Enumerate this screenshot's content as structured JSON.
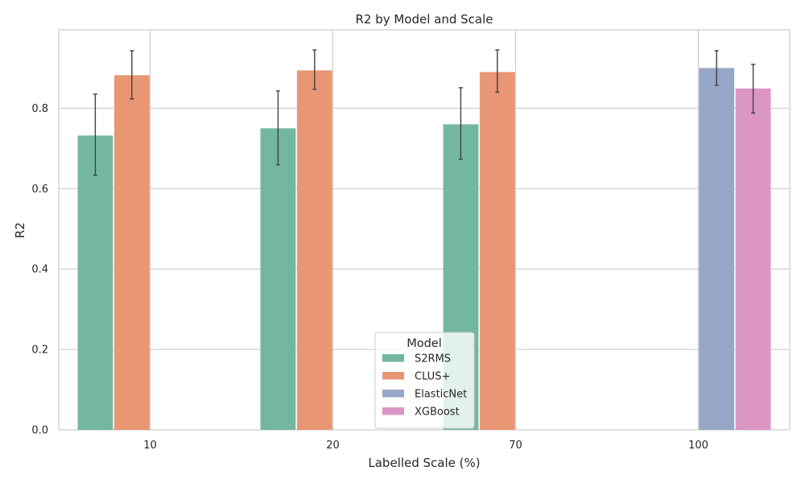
{
  "chart_data": {
    "type": "bar",
    "title": "R2 by Model and Scale",
    "xlabel": "Labelled Scale (%)",
    "ylabel": "R2",
    "categories": [
      "10",
      "20",
      "70",
      "100"
    ],
    "ylim": [
      0,
      0.995
    ],
    "yticks": [
      0.0,
      0.2,
      0.4,
      0.6,
      0.8
    ],
    "ytick_labels": [
      "0.0",
      "0.2",
      "0.4",
      "0.6",
      "0.8"
    ],
    "grid": true,
    "legend": {
      "title": "Model",
      "placement": "bottom-center"
    },
    "series": [
      {
        "name": "S2RMS",
        "color": "#73b7a0",
        "values": [
          0.732,
          0.75,
          0.76,
          null
        ],
        "err_low": [
          0.633,
          0.659,
          0.673,
          null
        ],
        "err_high": [
          0.835,
          0.843,
          0.851,
          null
        ]
      },
      {
        "name": "CLUS+",
        "color": "#e99674",
        "values": [
          0.882,
          0.894,
          0.89,
          null
        ],
        "err_low": [
          0.823,
          0.847,
          0.84,
          null
        ],
        "err_high": [
          0.943,
          0.945,
          0.945,
          null
        ]
      },
      {
        "name": "ElasticNet",
        "color": "#96a6c6",
        "values": [
          null,
          null,
          null,
          0.9
        ],
        "err_low": [
          null,
          null,
          null,
          0.857
        ],
        "err_high": [
          null,
          null,
          null,
          0.943
        ]
      },
      {
        "name": "XGBoost",
        "color": "#dc96c3",
        "values": [
          null,
          null,
          null,
          0.849
        ],
        "err_low": [
          null,
          null,
          null,
          0.788
        ],
        "err_high": [
          null,
          null,
          null,
          0.909
        ]
      }
    ]
  }
}
